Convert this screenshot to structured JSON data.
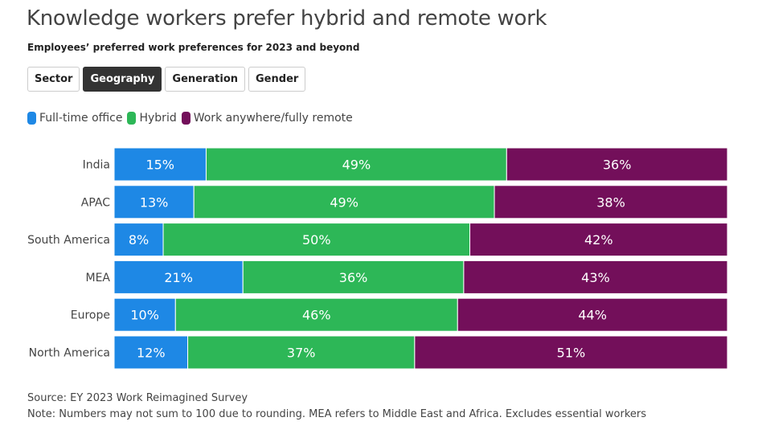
{
  "title": "Knowledge workers prefer hybrid and remote work",
  "subtitle": "Employees’ preferred work preferences for 2023 and beyond",
  "tabs": [
    {
      "label": "Sector",
      "active": false
    },
    {
      "label": "Geography",
      "active": true
    },
    {
      "label": "Generation",
      "active": false
    },
    {
      "label": "Gender",
      "active": false
    }
  ],
  "footer": {
    "source": "Source: EY 2023 Work Reimagined Survey",
    "note": "Note: Numbers may not sum to 100 due to rounding. MEA refers to Middle East and Africa. Excludes essential workers"
  },
  "chart_data": {
    "type": "bar",
    "orientation": "horizontal",
    "stacked": true,
    "categories": [
      "India",
      "APAC",
      "South America",
      "MEA",
      "Europe",
      "North America"
    ],
    "series": [
      {
        "name": "Full-time office",
        "color": "#1e88e5",
        "values": [
          15,
          13,
          8,
          21,
          10,
          12
        ]
      },
      {
        "name": "Hybrid",
        "color": "#2db757",
        "values": [
          49,
          49,
          50,
          36,
          46,
          37
        ]
      },
      {
        "name": "Work anywhere/fully remote",
        "color": "#730f5a",
        "values": [
          36,
          38,
          42,
          43,
          44,
          51
        ]
      }
    ],
    "value_suffix": "%",
    "grid": false,
    "legend": "top-left"
  }
}
